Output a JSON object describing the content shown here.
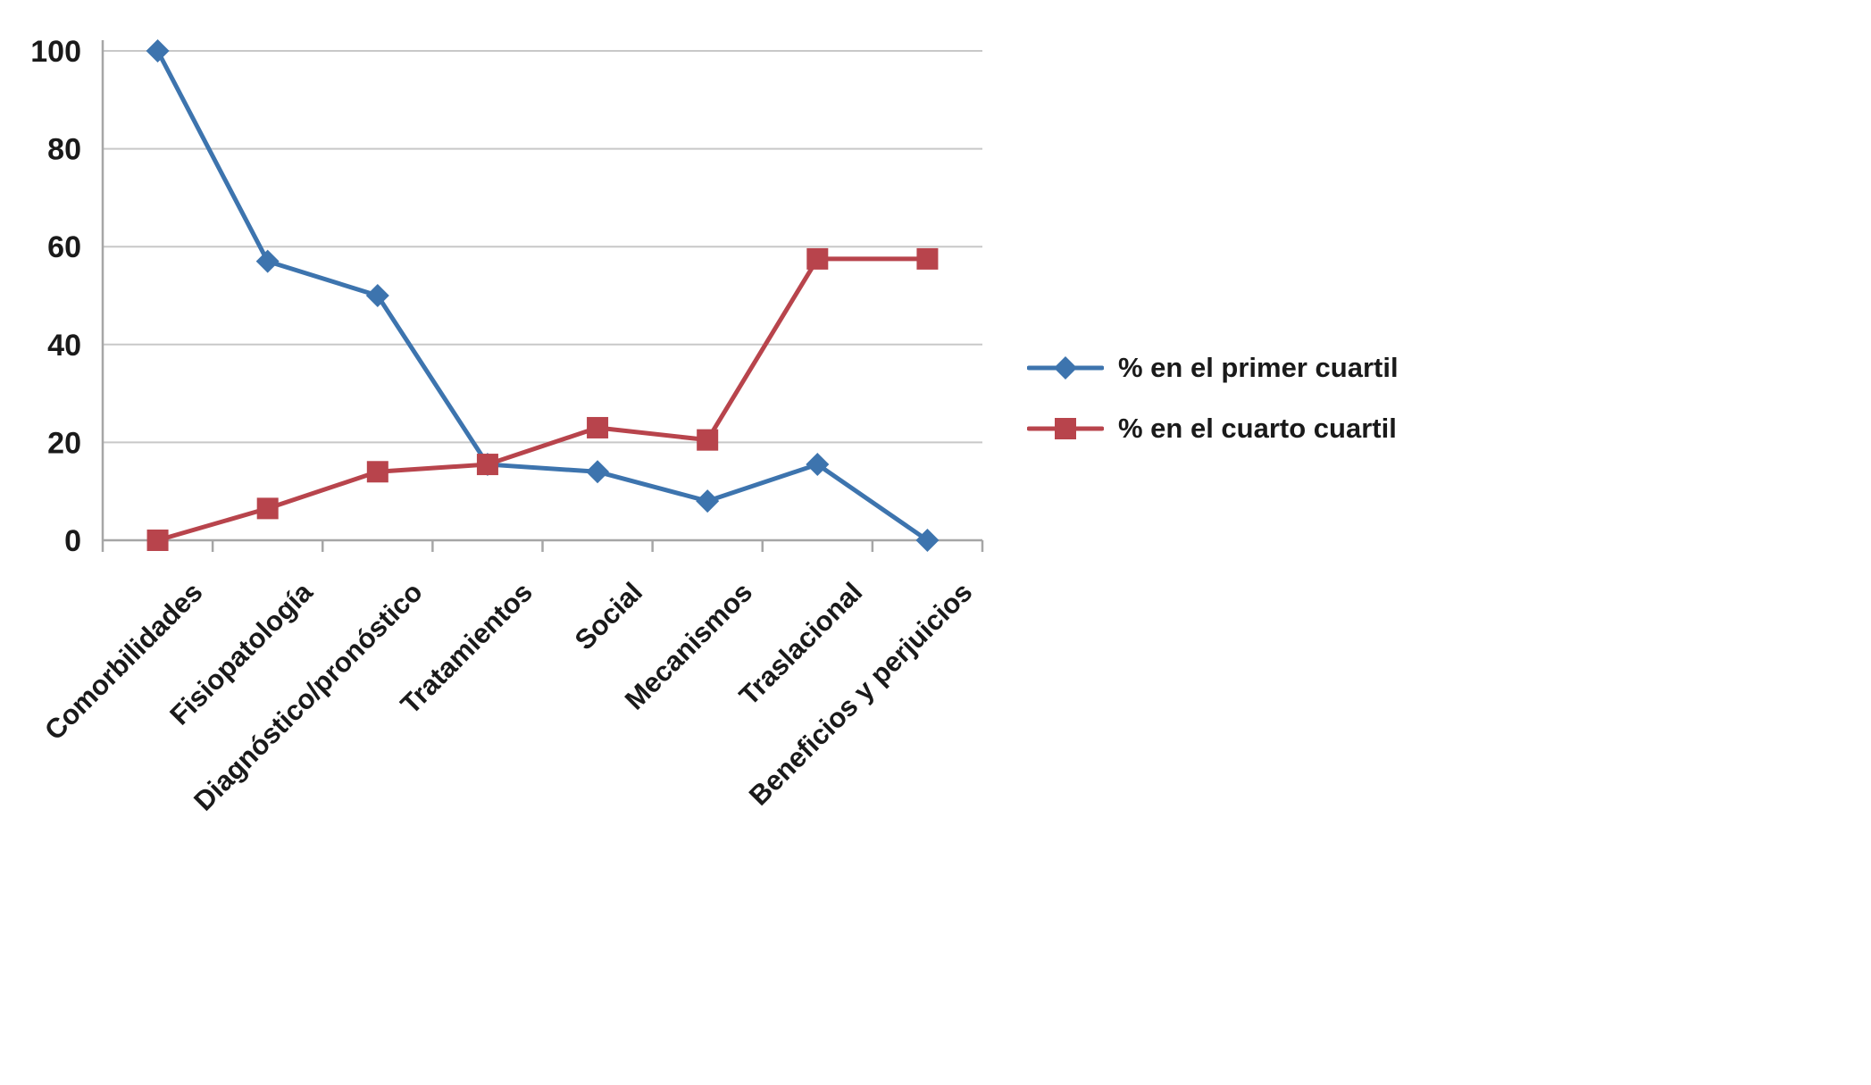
{
  "chart_data": {
    "type": "line",
    "title": "",
    "xlabel": "",
    "ylabel": "",
    "categories": [
      "Comorbilidades",
      "Fisiopatología",
      "Diagnóstico/pronóstico",
      "Tratamientos",
      "Social",
      "Mecanismos",
      "Traslacional",
      "Beneficios y perjuicios"
    ],
    "series": [
      {
        "name": "% en el primer cuartil",
        "color": "#3D74AE",
        "marker": "diamond",
        "values": [
          100,
          57,
          50,
          15.5,
          14,
          8,
          15.5,
          0
        ]
      },
      {
        "name": "% en el cuarto cuartil",
        "color": "#B8444C",
        "marker": "square",
        "values": [
          0,
          6.5,
          14,
          15.5,
          23,
          20.5,
          57.5,
          57.5
        ]
      }
    ],
    "ylim": [
      0,
      100
    ],
    "yticks": [
      0,
      20,
      40,
      60,
      80,
      100
    ],
    "grid": "horizontal",
    "legend_position": "right",
    "colors": {
      "gridline": "#C8C8C8",
      "axis": "#A6A6A6",
      "text": "#1A1A1A",
      "background": "#FFFFFF"
    }
  }
}
